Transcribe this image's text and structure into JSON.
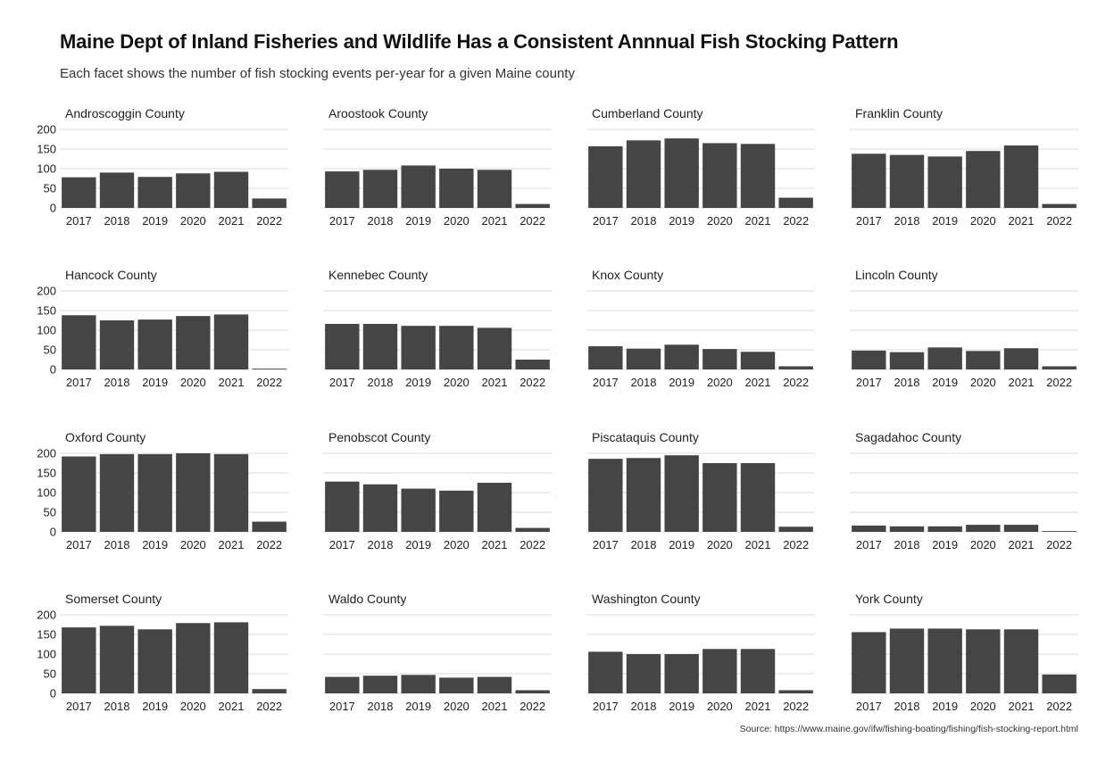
{
  "title": "Maine Dept of Inland Fisheries and Wildlife Has a Consistent Annnual Fish Stocking Pattern",
  "subtitle": "Each facet shows the number of fish stocking events per-year for a given Maine county",
  "source": "Source: https://www.maine.gov/ifw/fishing-boating/fishing/fish-stocking-report.html",
  "colors": {
    "bar": "#454545",
    "grid": "#dddddd",
    "text": "#222222"
  },
  "chart_data": {
    "type": "bar",
    "facet": "small-multiples",
    "categories": [
      "2017",
      "2018",
      "2019",
      "2020",
      "2021",
      "2022"
    ],
    "ylim": [
      0,
      200
    ],
    "yticks": [
      0,
      50,
      100,
      150,
      200
    ],
    "grid": true,
    "series": [
      {
        "name": "Androscoggin County",
        "values": [
          78,
          90,
          79,
          88,
          92,
          24
        ]
      },
      {
        "name": "Aroostook County",
        "values": [
          93,
          97,
          108,
          100,
          97,
          10
        ]
      },
      {
        "name": "Cumberland County",
        "values": [
          157,
          172,
          177,
          165,
          163,
          26
        ]
      },
      {
        "name": "Franklin County",
        "values": [
          138,
          135,
          131,
          145,
          159,
          10
        ]
      },
      {
        "name": "Hancock County",
        "values": [
          138,
          125,
          127,
          136,
          140,
          2
        ]
      },
      {
        "name": "Kennebec County",
        "values": [
          116,
          116,
          111,
          111,
          106,
          25
        ]
      },
      {
        "name": "Knox County",
        "values": [
          59,
          53,
          63,
          52,
          45,
          8
        ]
      },
      {
        "name": "Lincoln County",
        "values": [
          48,
          44,
          56,
          47,
          54,
          8
        ]
      },
      {
        "name": "Oxford County",
        "values": [
          192,
          198,
          198,
          200,
          198,
          26
        ]
      },
      {
        "name": "Penobscot County",
        "values": [
          128,
          121,
          110,
          105,
          125,
          10
        ]
      },
      {
        "name": "Piscataquis County",
        "values": [
          186,
          188,
          195,
          175,
          175,
          13
        ]
      },
      {
        "name": "Sagadahoc County",
        "values": [
          16,
          14,
          14,
          18,
          18,
          2
        ]
      },
      {
        "name": "Somerset County",
        "values": [
          168,
          172,
          163,
          179,
          181,
          11
        ]
      },
      {
        "name": "Waldo County",
        "values": [
          42,
          45,
          47,
          40,
          42,
          8
        ]
      },
      {
        "name": "Washington County",
        "values": [
          106,
          100,
          100,
          113,
          113,
          8
        ]
      },
      {
        "name": "York County",
        "values": [
          156,
          165,
          165,
          163,
          163,
          48
        ]
      }
    ]
  }
}
